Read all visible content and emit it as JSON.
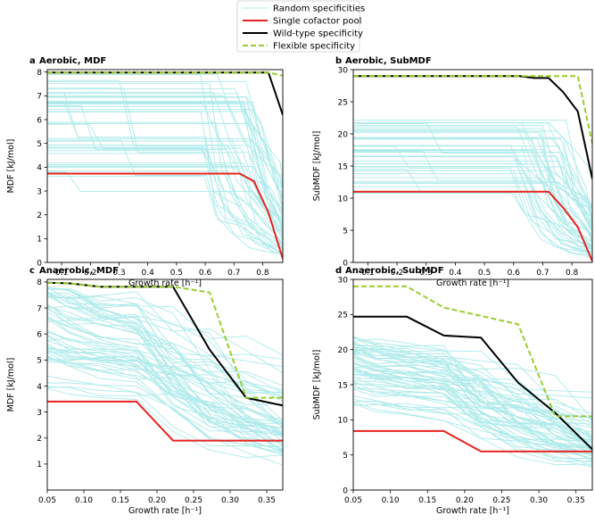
{
  "legend": {
    "placement": "top-center",
    "items": [
      {
        "label": "Random specificities",
        "color": "#aeeaea",
        "style": "thin"
      },
      {
        "label": "Single cofactor pool",
        "color": "#e8231f",
        "style": "solid"
      },
      {
        "label": "Wild-type specificity",
        "color": "#000000",
        "style": "solid"
      },
      {
        "label": "Flexible specificity",
        "color": "#9acd32",
        "style": "dashed"
      }
    ]
  },
  "chart_data": [
    {
      "type": "line",
      "panel": "a",
      "title": "Aerobic, MDF",
      "xlabel": "Growth rate [h⁻¹]",
      "ylabel": "MDF [kJ/mol]",
      "xlim": [
        0.05,
        0.87
      ],
      "ylim": [
        0,
        8.1
      ],
      "xticks": [
        0.1,
        0.2,
        0.3,
        0.4,
        0.5,
        0.6,
        0.7,
        0.8
      ],
      "xticklabels": [
        "0.1",
        "0.2",
        "0.3",
        "0.4",
        "0.5",
        "0.6",
        "0.7",
        "0.8"
      ],
      "yticks": [
        0,
        1,
        2,
        3,
        4,
        5,
        6,
        7,
        8
      ],
      "yticklabels": [
        "0",
        "1",
        "2",
        "3",
        "4",
        "5",
        "6",
        "7",
        "8"
      ],
      "series": [
        {
          "name": "Single cofactor pool",
          "x": [
            0.05,
            0.72,
            0.77,
            0.82,
            0.87
          ],
          "y": [
            3.73,
            3.73,
            3.4,
            2.1,
            0.15
          ]
        },
        {
          "name": "Wild-type specificity",
          "x": [
            0.05,
            0.82,
            0.87
          ],
          "y": [
            7.98,
            7.98,
            6.2
          ]
        },
        {
          "name": "Flexible specificity",
          "x": [
            0.05,
            0.82,
            0.87
          ],
          "y": [
            7.98,
            7.98,
            7.85
          ]
        }
      ]
    },
    {
      "type": "line",
      "panel": "b",
      "title": "Aerobic, SubMDF",
      "xlabel": "Growth rate [h⁻¹]",
      "ylabel": "SubMDF [kJ/mol]",
      "xlim": [
        0.05,
        0.87
      ],
      "ylim": [
        0,
        30
      ],
      "xticks": [
        0.1,
        0.2,
        0.3,
        0.4,
        0.5,
        0.6,
        0.7,
        0.8
      ],
      "xticklabels": [
        "0.1",
        "0.2",
        "0.3",
        "0.4",
        "0.5",
        "0.6",
        "0.7",
        "0.8"
      ],
      "yticks": [
        0,
        5,
        10,
        15,
        20,
        25,
        30
      ],
      "yticklabels": [
        "0",
        "5",
        "10",
        "15",
        "20",
        "25",
        "30"
      ],
      "series": [
        {
          "name": "Single cofactor pool",
          "x": [
            0.05,
            0.72,
            0.77,
            0.82,
            0.87
          ],
          "y": [
            11,
            11,
            8.5,
            5.5,
            0.2
          ]
        },
        {
          "name": "Wild-type specificity",
          "x": [
            0.05,
            0.62,
            0.67,
            0.72,
            0.77,
            0.82,
            0.87
          ],
          "y": [
            29,
            29,
            28.7,
            28.7,
            26.5,
            23.5,
            13
          ]
        },
        {
          "name": "Flexible specificity",
          "x": [
            0.05,
            0.82,
            0.87
          ],
          "y": [
            29,
            29,
            18.5
          ]
        }
      ]
    },
    {
      "type": "line",
      "panel": "c",
      "title": "Anaerobic, MDF",
      "xlabel": "Growth rate [h⁻¹]",
      "ylabel": "MDF [kJ/mol]",
      "xlim": [
        0.05,
        0.372
      ],
      "ylim": [
        0,
        8.1
      ],
      "xticks": [
        0.05,
        0.1,
        0.15,
        0.2,
        0.25,
        0.3,
        0.35
      ],
      "xticklabels": [
        "0.05",
        "0.10",
        "0.15",
        "0.20",
        "0.25",
        "0.30",
        "0.35"
      ],
      "yticks": [
        1,
        2,
        3,
        4,
        5,
        6,
        7,
        8
      ],
      "yticklabels": [
        "1",
        "2",
        "3",
        "4",
        "5",
        "6",
        "7",
        "8"
      ],
      "series": [
        {
          "name": "Single cofactor pool",
          "x": [
            0.05,
            0.172,
            0.222,
            0.372
          ],
          "y": [
            3.4,
            3.4,
            1.9,
            1.9
          ]
        },
        {
          "name": "Wild-type specificity",
          "x": [
            0.05,
            0.08,
            0.122,
            0.222,
            0.272,
            0.322,
            0.372
          ],
          "y": [
            7.97,
            7.95,
            7.82,
            7.82,
            5.4,
            3.55,
            3.25
          ]
        },
        {
          "name": "Flexible specificity",
          "x": [
            0.05,
            0.08,
            0.122,
            0.222,
            0.272,
            0.322,
            0.372
          ],
          "y": [
            7.97,
            7.95,
            7.82,
            7.82,
            7.6,
            3.55,
            3.55
          ]
        }
      ]
    },
    {
      "type": "line",
      "panel": "d",
      "title": "Anaerobic, SubMDF",
      "xlabel": "Growth rate [h⁻¹]",
      "ylabel": "SubMDF [kJ/mol]",
      "xlim": [
        0.05,
        0.372
      ],
      "ylim": [
        0,
        30
      ],
      "xticks": [
        0.05,
        0.1,
        0.15,
        0.2,
        0.25,
        0.3,
        0.35
      ],
      "xticklabels": [
        "0.05",
        "0.10",
        "0.15",
        "0.20",
        "0.25",
        "0.30",
        "0.35"
      ],
      "yticks": [
        0,
        5,
        10,
        15,
        20,
        25,
        30
      ],
      "yticklabels": [
        "0",
        "5",
        "10",
        "15",
        "20",
        "25",
        "30"
      ],
      "series": [
        {
          "name": "Single cofactor pool",
          "x": [
            0.05,
            0.172,
            0.222,
            0.372
          ],
          "y": [
            8.4,
            8.4,
            5.5,
            5.5
          ]
        },
        {
          "name": "Wild-type specificity",
          "x": [
            0.05,
            0.122,
            0.172,
            0.222,
            0.272,
            0.322,
            0.372
          ],
          "y": [
            24.7,
            24.7,
            22,
            21.7,
            15.3,
            11,
            5.8
          ]
        },
        {
          "name": "Flexible specificity",
          "x": [
            0.05,
            0.122,
            0.172,
            0.222,
            0.272,
            0.322,
            0.372
          ],
          "y": [
            29,
            29,
            26,
            24.8,
            23.6,
            10.5,
            10.5
          ]
        }
      ]
    }
  ]
}
